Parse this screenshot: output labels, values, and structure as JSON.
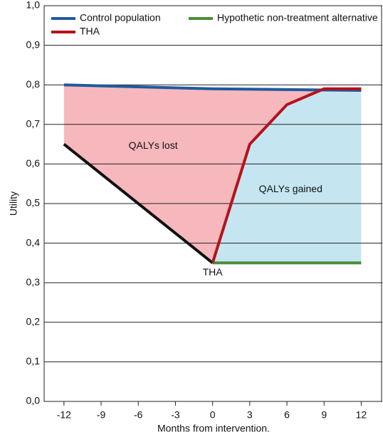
{
  "chart_data": {
    "type": "line",
    "xlabel": "Months from intervention.",
    "ylabel": "Utility",
    "xlim": [
      -13.6,
      13.7
    ],
    "ylim": [
      0,
      1
    ],
    "xticks": [
      -12,
      -9,
      -6,
      -3,
      0,
      3,
      6,
      9,
      12
    ],
    "yticks": [
      {
        "value": 0,
        "label": "0,0"
      },
      {
        "value": 0.1,
        "label": "0,1"
      },
      {
        "value": 0.2,
        "label": "0,2"
      },
      {
        "value": 0.3,
        "label": "0,3"
      },
      {
        "value": 0.4,
        "label": "0,4"
      },
      {
        "value": 0.5,
        "label": "0,5"
      },
      {
        "value": 0.6,
        "label": "0,6"
      },
      {
        "value": 0.7,
        "label": "0,7"
      },
      {
        "value": 0.8,
        "label": "0,8"
      },
      {
        "value": 0.9,
        "label": "0,9"
      },
      {
        "value": 1,
        "label": "1,0"
      }
    ],
    "grid": true,
    "legend": "upper left",
    "series": [
      {
        "name": "Control population",
        "color": "#1f5a9e",
        "x": [
          -12,
          0,
          12
        ],
        "values": [
          0.8,
          0.79,
          0.786
        ]
      },
      {
        "name": "THA",
        "color": "#b5121b",
        "x": [
          0,
          3,
          6,
          9,
          12
        ],
        "values": [
          0.35,
          0.65,
          0.75,
          0.79,
          0.79
        ]
      },
      {
        "name": "Hypothetic non-treatment alternative",
        "color": "#4a8c3a",
        "x": [
          0,
          12
        ],
        "values": [
          0.35,
          0.35
        ]
      },
      {
        "color": "#111111",
        "x": [
          -12,
          0
        ],
        "values": [
          0.65,
          0.35
        ]
      }
    ],
    "annotations": [
      "QALYs lost",
      "QALYs gained",
      "THA"
    ],
    "fills": {
      "lost": "#f6b8bd",
      "gained": "#c5e6f1"
    }
  }
}
